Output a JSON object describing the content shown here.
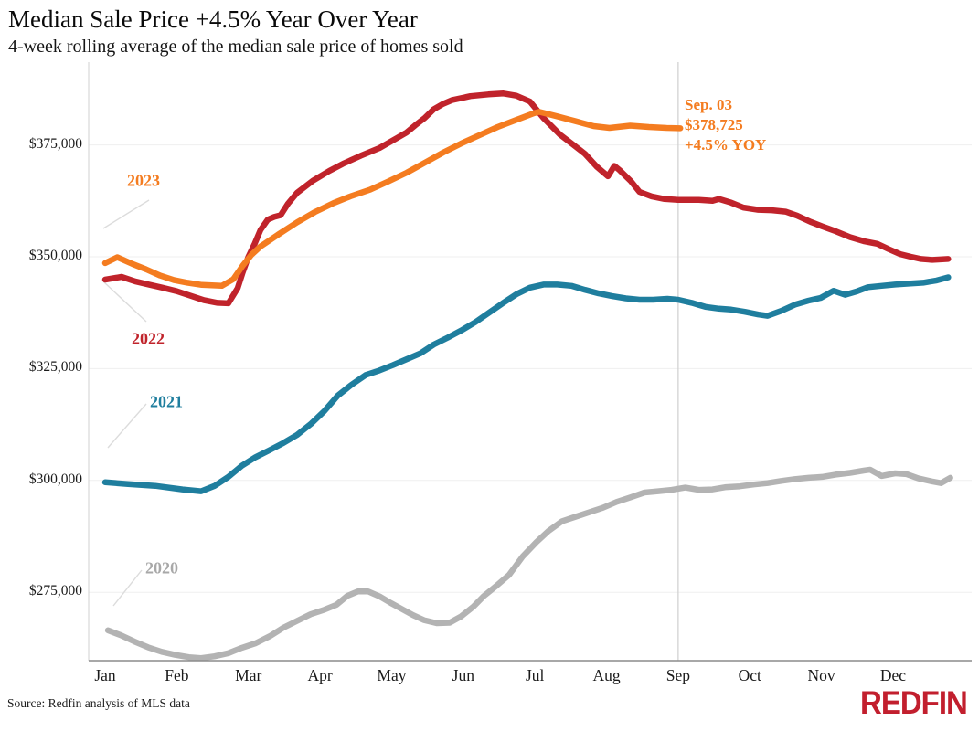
{
  "header": {
    "title": "Median Sale Price +4.5% Year Over Year",
    "subtitle": "4-week rolling average of the median sale price of homes sold"
  },
  "annotation": {
    "date": "Sep. 03",
    "value": "$378,725",
    "yoy": "+4.5% YOY"
  },
  "footer": {
    "source": "Source: Redfin analysis of MLS data",
    "logo": "REDFIN"
  },
  "colors": {
    "accent_orange": "#F47C20",
    "accent_red": "#C0232B",
    "accent_teal": "#1F7E9E",
    "accent_gray": "#B3B3B3",
    "logo_red": "#C21F2E"
  },
  "chart_data": {
    "type": "line",
    "title": "Median Sale Price +4.5% Year Over Year",
    "subtitle": "4-week rolling average of the median sale price of homes sold",
    "x_unit": "month (0 = Jan ... 11 = Dec)",
    "xticklabels": [
      "Jan",
      "Feb",
      "Mar",
      "Apr",
      "May",
      "Jun",
      "Jul",
      "Aug",
      "Sep",
      "Oct",
      "Nov",
      "Dec"
    ],
    "yticks": [
      {
        "value": 375000,
        "label": "$375,000"
      },
      {
        "value": 350000,
        "label": "$350,000"
      },
      {
        "value": 325000,
        "label": "$325,000"
      },
      {
        "value": 300000,
        "label": "$300,000"
      },
      {
        "value": 275000,
        "label": "$275,000"
      }
    ],
    "ylim": [
      259500,
      393500
    ],
    "xlim": [
      0,
      11.85
    ],
    "grid": true,
    "legend_position": "inline-labels",
    "marker": {
      "month": 8.0,
      "date": "Sep. 03",
      "value": 378725,
      "value_label": "$378,725",
      "yoy_label": "+4.5% YOY"
    },
    "series": [
      {
        "name": "2020",
        "color": "#B3B3B3",
        "label_color": "#A8A8A8",
        "points": [
          [
            0.04,
            266500
          ],
          [
            0.22,
            265400
          ],
          [
            0.41,
            264000
          ],
          [
            0.6,
            262700
          ],
          [
            0.79,
            261700
          ],
          [
            0.98,
            261000
          ],
          [
            1.17,
            260500
          ],
          [
            1.34,
            260300
          ],
          [
            1.53,
            260700
          ],
          [
            1.72,
            261400
          ],
          [
            1.91,
            262600
          ],
          [
            2.1,
            263600
          ],
          [
            2.3,
            265200
          ],
          [
            2.49,
            267100
          ],
          [
            2.68,
            268600
          ],
          [
            2.87,
            270100
          ],
          [
            3.06,
            271100
          ],
          [
            3.23,
            272200
          ],
          [
            3.38,
            274200
          ],
          [
            3.53,
            275200
          ],
          [
            3.67,
            275200
          ],
          [
            3.83,
            274100
          ],
          [
            3.99,
            272600
          ],
          [
            4.15,
            271200
          ],
          [
            4.3,
            269900
          ],
          [
            4.45,
            268800
          ],
          [
            4.63,
            268100
          ],
          [
            4.81,
            268200
          ],
          [
            4.97,
            269600
          ],
          [
            5.14,
            271800
          ],
          [
            5.29,
            274200
          ],
          [
            5.46,
            276400
          ],
          [
            5.64,
            278900
          ],
          [
            5.83,
            283000
          ],
          [
            6.02,
            286200
          ],
          [
            6.19,
            288700
          ],
          [
            6.38,
            290900
          ],
          [
            6.57,
            291900
          ],
          [
            6.76,
            292900
          ],
          [
            6.95,
            293900
          ],
          [
            7.14,
            295200
          ],
          [
            7.33,
            296200
          ],
          [
            7.53,
            297300
          ],
          [
            7.72,
            297600
          ],
          [
            7.91,
            297900
          ],
          [
            8.1,
            298400
          ],
          [
            8.29,
            297900
          ],
          [
            8.48,
            298000
          ],
          [
            8.67,
            298500
          ],
          [
            8.86,
            298700
          ],
          [
            9.06,
            299100
          ],
          [
            9.25,
            299400
          ],
          [
            9.44,
            299900
          ],
          [
            9.63,
            300300
          ],
          [
            9.82,
            300600
          ],
          [
            10.01,
            300800
          ],
          [
            10.2,
            301300
          ],
          [
            10.4,
            301700
          ],
          [
            10.59,
            302200
          ],
          [
            10.68,
            302400
          ],
          [
            10.84,
            301000
          ],
          [
            11.03,
            301600
          ],
          [
            11.19,
            301400
          ],
          [
            11.35,
            300500
          ],
          [
            11.54,
            299800
          ],
          [
            11.67,
            299400
          ],
          [
            11.8,
            300600
          ]
        ]
      },
      {
        "name": "2021",
        "color": "#1F7E9E",
        "label_color": "#1F7E9E",
        "points": [
          [
            0,
            299600
          ],
          [
            0.32,
            299200
          ],
          [
            0.7,
            298800
          ],
          [
            1.08,
            298000
          ],
          [
            1.34,
            297600
          ],
          [
            1.53,
            298800
          ],
          [
            1.72,
            300800
          ],
          [
            1.91,
            303300
          ],
          [
            2.1,
            305200
          ],
          [
            2.3,
            306800
          ],
          [
            2.49,
            308400
          ],
          [
            2.68,
            310200
          ],
          [
            2.87,
            312600
          ],
          [
            3.06,
            315500
          ],
          [
            3.25,
            319000
          ],
          [
            3.44,
            321400
          ],
          [
            3.64,
            323600
          ],
          [
            3.83,
            324600
          ],
          [
            4.02,
            325800
          ],
          [
            4.21,
            327100
          ],
          [
            4.4,
            328400
          ],
          [
            4.59,
            330400
          ],
          [
            4.78,
            331900
          ],
          [
            4.97,
            333500
          ],
          [
            5.17,
            335400
          ],
          [
            5.36,
            337500
          ],
          [
            5.55,
            339600
          ],
          [
            5.74,
            341600
          ],
          [
            5.93,
            343100
          ],
          [
            6.12,
            343800
          ],
          [
            6.31,
            343800
          ],
          [
            6.51,
            343500
          ],
          [
            6.7,
            342600
          ],
          [
            6.89,
            341800
          ],
          [
            7.08,
            341200
          ],
          [
            7.27,
            340700
          ],
          [
            7.46,
            340400
          ],
          [
            7.65,
            340400
          ],
          [
            7.85,
            340600
          ],
          [
            8,
            340400
          ],
          [
            8.19,
            339700
          ],
          [
            8.38,
            338800
          ],
          [
            8.57,
            338400
          ],
          [
            8.74,
            338200
          ],
          [
            8.93,
            337700
          ],
          [
            9.12,
            337100
          ],
          [
            9.25,
            336800
          ],
          [
            9.44,
            337900
          ],
          [
            9.63,
            339300
          ],
          [
            9.82,
            340200
          ],
          [
            9.99,
            340800
          ],
          [
            10.17,
            342400
          ],
          [
            10.33,
            341500
          ],
          [
            10.5,
            342300
          ],
          [
            10.65,
            343200
          ],
          [
            10.84,
            343500
          ],
          [
            11.03,
            343800
          ],
          [
            11.22,
            344000
          ],
          [
            11.42,
            344200
          ],
          [
            11.61,
            344700
          ],
          [
            11.77,
            345400
          ]
        ]
      },
      {
        "name": "2022",
        "color": "#C0232B",
        "label_color": "#C0232B",
        "points": [
          [
            0,
            344900
          ],
          [
            0.23,
            345500
          ],
          [
            0.42,
            344500
          ],
          [
            0.61,
            343800
          ],
          [
            0.8,
            343100
          ],
          [
            1,
            342300
          ],
          [
            1.19,
            341300
          ],
          [
            1.38,
            340300
          ],
          [
            1.57,
            339700
          ],
          [
            1.72,
            339600
          ],
          [
            1.85,
            343000
          ],
          [
            1.92,
            346500
          ],
          [
            2,
            350000
          ],
          [
            2.09,
            353000
          ],
          [
            2.17,
            356000
          ],
          [
            2.27,
            358300
          ],
          [
            2.36,
            358900
          ],
          [
            2.45,
            359300
          ],
          [
            2.55,
            361800
          ],
          [
            2.68,
            364300
          ],
          [
            2.9,
            367000
          ],
          [
            3.13,
            369200
          ],
          [
            3.32,
            370800
          ],
          [
            3.57,
            372600
          ],
          [
            3.83,
            374300
          ],
          [
            4.08,
            376600
          ],
          [
            4.21,
            377800
          ],
          [
            4.33,
            379400
          ],
          [
            4.46,
            381000
          ],
          [
            4.59,
            383000
          ],
          [
            4.72,
            384200
          ],
          [
            4.84,
            385000
          ],
          [
            5.1,
            385900
          ],
          [
            5.35,
            386300
          ],
          [
            5.56,
            386500
          ],
          [
            5.74,
            386000
          ],
          [
            5.93,
            384700
          ],
          [
            6.12,
            381000
          ],
          [
            6.35,
            377300
          ],
          [
            6.53,
            375100
          ],
          [
            6.7,
            373000
          ],
          [
            6.86,
            370200
          ],
          [
            7.02,
            368000
          ],
          [
            7.11,
            370300
          ],
          [
            7.18,
            369400
          ],
          [
            7.34,
            366900
          ],
          [
            7.46,
            364500
          ],
          [
            7.63,
            363500
          ],
          [
            7.81,
            362900
          ],
          [
            8,
            362700
          ],
          [
            8.29,
            362700
          ],
          [
            8.48,
            362500
          ],
          [
            8.57,
            362900
          ],
          [
            8.74,
            362100
          ],
          [
            8.91,
            361000
          ],
          [
            9.12,
            360500
          ],
          [
            9.31,
            360400
          ],
          [
            9.5,
            360100
          ],
          [
            9.66,
            359200
          ],
          [
            9.85,
            357800
          ],
          [
            10.01,
            356800
          ],
          [
            10.2,
            355700
          ],
          [
            10.4,
            354400
          ],
          [
            10.59,
            353500
          ],
          [
            10.78,
            352900
          ],
          [
            10.94,
            351700
          ],
          [
            11.1,
            350600
          ],
          [
            11.25,
            350000
          ],
          [
            11.39,
            349500
          ],
          [
            11.55,
            349300
          ],
          [
            11.77,
            349500
          ]
        ]
      },
      {
        "name": "2023",
        "color": "#F47C20",
        "label_color": "#F47C20",
        "points": [
          [
            0,
            348600
          ],
          [
            0.17,
            349900
          ],
          [
            0.38,
            348400
          ],
          [
            0.57,
            347200
          ],
          [
            0.77,
            345800
          ],
          [
            0.96,
            344800
          ],
          [
            1.15,
            344200
          ],
          [
            1.35,
            343700
          ],
          [
            1.63,
            343500
          ],
          [
            1.79,
            345000
          ],
          [
            1.92,
            348000
          ],
          [
            2.04,
            350400
          ],
          [
            2.17,
            352300
          ],
          [
            2.42,
            355000
          ],
          [
            2.68,
            357700
          ],
          [
            2.93,
            360000
          ],
          [
            3.19,
            362000
          ],
          [
            3.44,
            363600
          ],
          [
            3.7,
            365000
          ],
          [
            3.95,
            366800
          ],
          [
            4.21,
            368800
          ],
          [
            4.46,
            371000
          ],
          [
            4.72,
            373300
          ],
          [
            4.97,
            375300
          ],
          [
            5.23,
            377200
          ],
          [
            5.48,
            379000
          ],
          [
            5.74,
            380600
          ],
          [
            5.99,
            382100
          ],
          [
            6.06,
            382400
          ],
          [
            6.31,
            381400
          ],
          [
            6.57,
            380300
          ],
          [
            6.82,
            379200
          ],
          [
            7.04,
            378800
          ],
          [
            7.33,
            379300
          ],
          [
            7.59,
            379000
          ],
          [
            7.84,
            378800
          ],
          [
            8.03,
            378725
          ]
        ]
      }
    ]
  }
}
